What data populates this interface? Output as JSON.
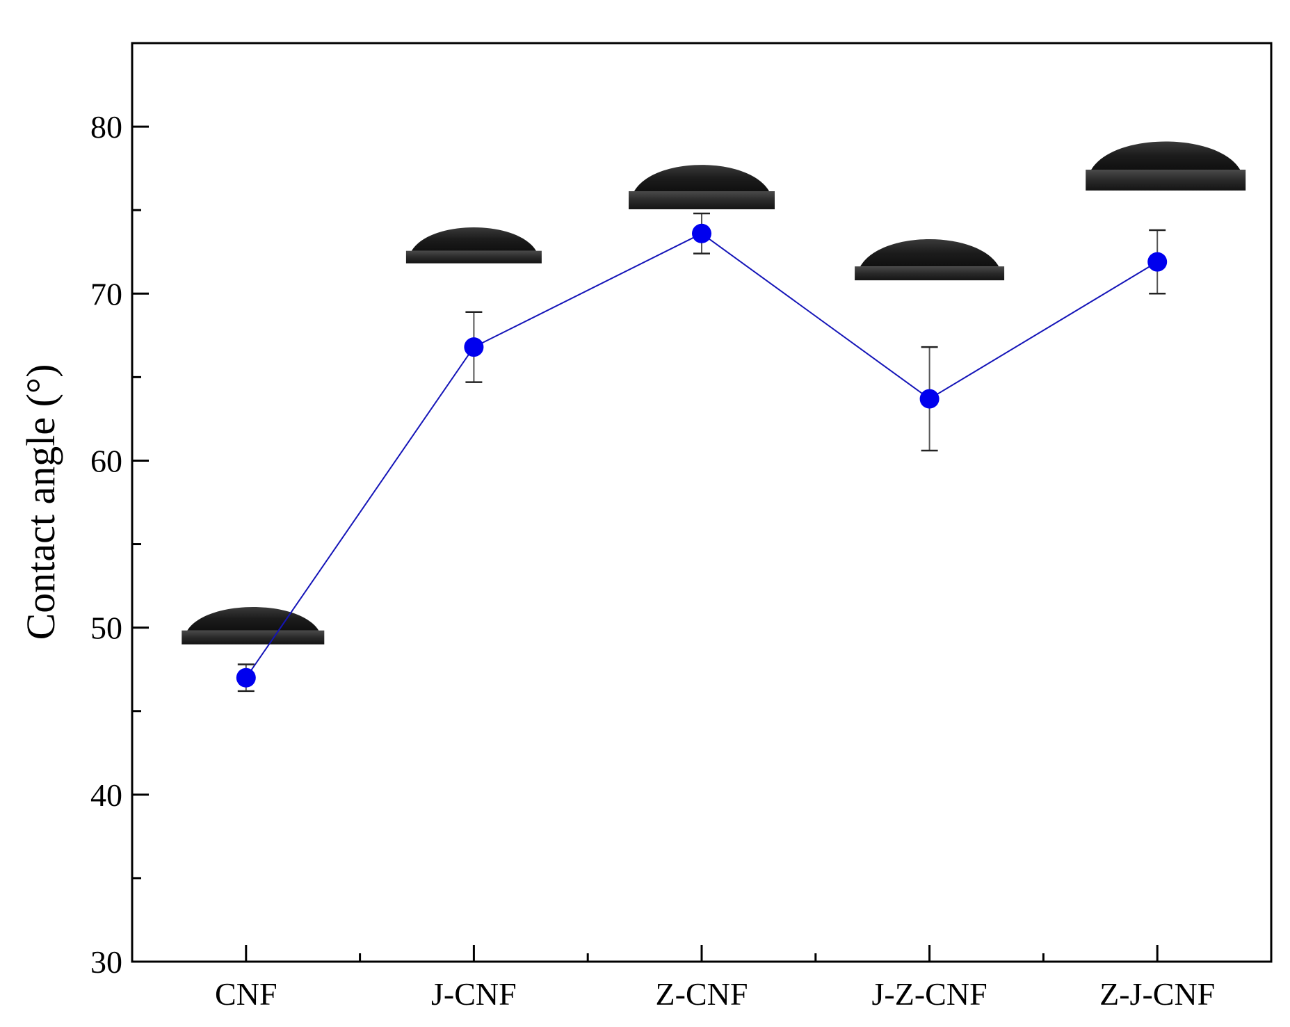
{
  "chart_data": {
    "type": "line",
    "title": "",
    "xlabel": "",
    "ylabel": "Contact angle (°)",
    "categories": [
      "CNF",
      "J-CNF",
      "Z-CNF",
      "J-Z-CNF",
      "Z-J-CNF"
    ],
    "series": [
      {
        "values": [
          47.0,
          66.8,
          73.6,
          63.7,
          71.9
        ],
        "error": [
          0.8,
          2.1,
          1.2,
          3.1,
          1.9
        ],
        "color": "#0000ee"
      }
    ],
    "ylim": [
      30,
      85
    ],
    "yticks": [
      30,
      40,
      50,
      60,
      70,
      80
    ],
    "grid": false,
    "insets": "water droplet images above each data point"
  }
}
